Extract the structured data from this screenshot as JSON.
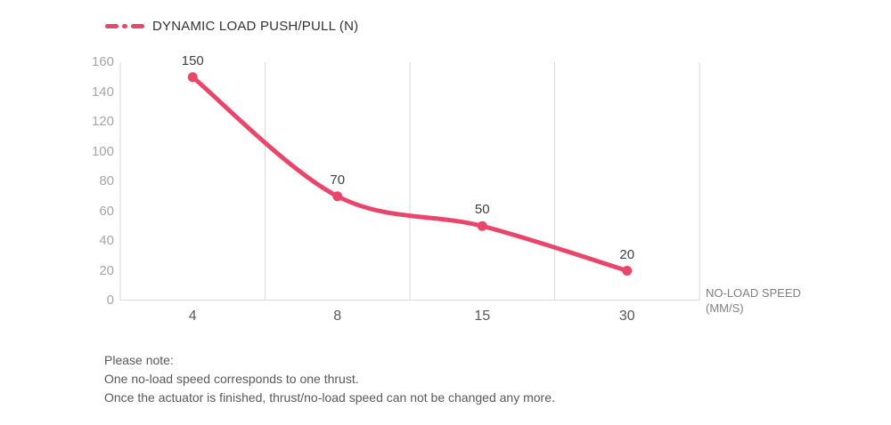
{
  "legend": {
    "label": "DYNAMIC LOAD PUSH/PULL (N)"
  },
  "chart_data": {
    "type": "line",
    "title": "DYNAMIC LOAD PUSH/PULL (N)",
    "categories": [
      "4",
      "8",
      "15",
      "30"
    ],
    "series": [
      {
        "name": "DYNAMIC LOAD PUSH/PULL (N)",
        "values": [
          150,
          70,
          50,
          20
        ],
        "color": "#e8476b"
      }
    ],
    "data_labels": [
      "150",
      "70",
      "50",
      "20"
    ],
    "ylim": [
      0,
      160
    ],
    "ytick_step": 20,
    "yticks": [
      "0",
      "20",
      "40",
      "60",
      "80",
      "100",
      "120",
      "140",
      "160"
    ],
    "xlabel": "NO-LOAD SPEED (MM/S)",
    "ylabel": "",
    "grid": "vertical",
    "legend_position": "top-left",
    "smooth": true,
    "marker": "circle"
  },
  "axis": {
    "title_line1": "NO-LOAD SPEED",
    "title_line2": "(MM/S)"
  },
  "notes": {
    "line1": "Please note:",
    "line2": "One no-load speed corresponds to one thrust.",
    "line3": "Once the actuator is finished, thrust/no-load speed can not be changed any more."
  },
  "colors": {
    "accent": "#e8476b",
    "grid": "#d9d9d9",
    "y_tick_text": "#a6a6a6",
    "x_tick_text": "#595959",
    "data_label_text": "#404040",
    "axis_title_text": "#808080",
    "note_text": "#595959",
    "legend_text": "#333333",
    "background": "#ffffff"
  }
}
